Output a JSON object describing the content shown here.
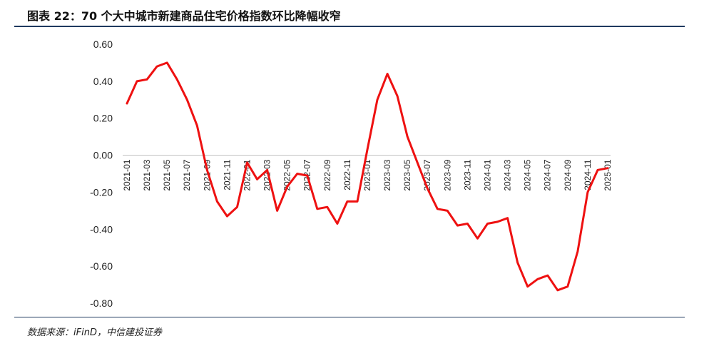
{
  "header": {
    "title": "图表 22：70 个大中城市新建商品住宅价格指数环比降幅收窄"
  },
  "footer": {
    "source": "数据来源：iFinD，中信建投证券"
  },
  "chart_data": {
    "type": "line",
    "title": "图表 22：70 个大中城市新建商品住宅价格指数环比降幅收窄",
    "xlabel": "",
    "ylabel": "",
    "ylim": [
      -0.8,
      0.6
    ],
    "yticks": [
      0.6,
      0.4,
      0.2,
      0.0,
      -0.2,
      -0.4,
      -0.6,
      -0.8
    ],
    "ytick_labels": [
      "0.60",
      "0.40",
      "0.20",
      "0.00",
      "-0.20",
      "-0.40",
      "-0.60",
      "-0.80"
    ],
    "tick_labels": [
      "2021-01",
      "2021-03",
      "2021-05",
      "2021-07",
      "2021-09",
      "2021-11",
      "2022-01",
      "2022-03",
      "2022-05",
      "2022-07",
      "2022-09",
      "2022-11",
      "2023-01",
      "2023-03",
      "2023-05",
      "2023-07",
      "2023-09",
      "2023-11",
      "2024-01",
      "2024-03",
      "2024-05",
      "2024-07",
      "2024-09",
      "2024-11",
      "2025-01"
    ],
    "x": [
      "2021-01",
      "2021-02",
      "2021-03",
      "2021-04",
      "2021-05",
      "2021-06",
      "2021-07",
      "2021-08",
      "2021-09",
      "2021-10",
      "2021-11",
      "2021-12",
      "2022-01",
      "2022-02",
      "2022-03",
      "2022-04",
      "2022-05",
      "2022-06",
      "2022-07",
      "2022-08",
      "2022-09",
      "2022-10",
      "2022-11",
      "2022-12",
      "2023-01",
      "2023-02",
      "2023-03",
      "2023-04",
      "2023-05",
      "2023-06",
      "2023-07",
      "2023-08",
      "2023-09",
      "2023-10",
      "2023-11",
      "2023-12",
      "2024-01",
      "2024-02",
      "2024-03",
      "2024-04",
      "2024-05",
      "2024-06",
      "2024-07",
      "2024-08",
      "2024-09",
      "2024-10",
      "2024-11",
      "2024-12",
      "2025-01"
    ],
    "series": [
      {
        "color": "#ee1111",
        "values": [
          0.28,
          0.4,
          0.41,
          0.48,
          0.5,
          0.41,
          0.3,
          0.16,
          -0.08,
          -0.25,
          -0.33,
          -0.28,
          -0.04,
          -0.13,
          -0.08,
          -0.3,
          -0.17,
          -0.1,
          -0.11,
          -0.29,
          -0.28,
          -0.37,
          -0.25,
          -0.25,
          0.03,
          0.3,
          0.44,
          0.32,
          0.1,
          -0.04,
          -0.18,
          -0.29,
          -0.3,
          -0.38,
          -0.37,
          -0.45,
          -0.37,
          -0.36,
          -0.34,
          -0.58,
          -0.71,
          -0.67,
          -0.65,
          -0.73,
          -0.71,
          -0.52,
          -0.2,
          -0.08,
          -0.07
        ]
      }
    ],
    "grid": false,
    "legend": "none"
  }
}
